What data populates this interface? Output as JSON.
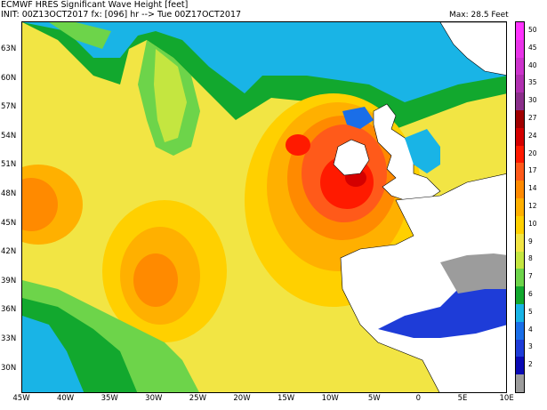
{
  "header": {
    "title": "ECMWF HRES Significant Wave Height [feet]",
    "init_line": "INIT: 00Z13OCT2017  fx: [096]  hr  --> Tue 00Z17OCT2017",
    "max_label": "Max:   28.5 Feet"
  },
  "map": {
    "lat_labels": [
      "63N",
      "60N",
      "57N",
      "54N",
      "51N",
      "48N",
      "45N",
      "42N",
      "39N",
      "36N",
      "33N",
      "30N"
    ],
    "lon_labels": [
      "45W",
      "40W",
      "35W",
      "30W",
      "25W",
      "20W",
      "15W",
      "10W",
      "5W",
      "0",
      "5E",
      "10E"
    ],
    "land_color": "#ffffff",
    "sea_base_color": "#f2e544"
  },
  "legend": {
    "levels": [
      {
        "label": "50",
        "color": "#ff33ff"
      },
      {
        "label": "45",
        "color": "#e833e8"
      },
      {
        "label": "40",
        "color": "#cc33cc"
      },
      {
        "label": "35",
        "color": "#b030b0"
      },
      {
        "label": "30",
        "color": "#8a2f8a"
      },
      {
        "label": "27",
        "color": "#a00000"
      },
      {
        "label": "24",
        "color": "#d40000"
      },
      {
        "label": "20",
        "color": "#ff1a00"
      },
      {
        "label": "17",
        "color": "#ff5a1a"
      },
      {
        "label": "14",
        "color": "#ff8a00"
      },
      {
        "label": "12",
        "color": "#ffb000"
      },
      {
        "label": "10",
        "color": "#ffd000"
      },
      {
        "label": "9",
        "color": "#f2e544"
      },
      {
        "label": "8",
        "color": "#c4e640"
      },
      {
        "label": "7",
        "color": "#6dd44a"
      },
      {
        "label": "6",
        "color": "#12a82e"
      },
      {
        "label": "5",
        "color": "#19b4e6"
      },
      {
        "label": "4",
        "color": "#1a6ee8"
      },
      {
        "label": "3",
        "color": "#1e3cd8"
      },
      {
        "label": "2",
        "color": "#0a0ab4"
      },
      {
        "label": "",
        "color": "#9c9c9c"
      }
    ]
  }
}
